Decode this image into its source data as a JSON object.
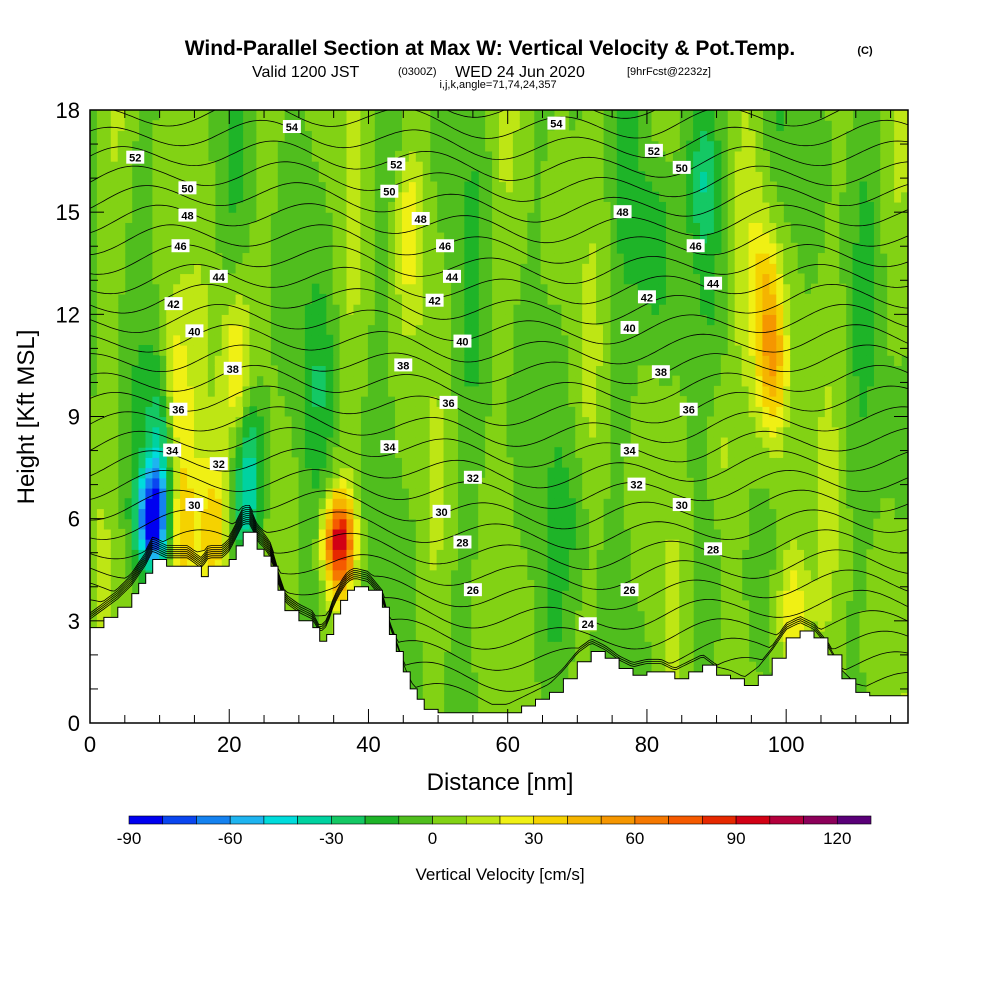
{
  "title": {
    "main": "Wind-Parallel Section at Max W: Vertical Velocity & Pot.Temp.",
    "copyright": "(C)",
    "valid_prefix": "Valid 1200 JST",
    "valid_utc": "(0300Z)",
    "valid_date": "WED 24 Jun 2020",
    "forecast": "[9hrFcst@2232z]",
    "indices": "i,j,k,angle=71,74,24,357"
  },
  "chart_data": {
    "type": "heatmap",
    "xlabel": "Distance [nm]",
    "ylabel": "Height [Kft MSL]",
    "xlim": [
      0,
      117.5
    ],
    "ylim": [
      0,
      18
    ],
    "x_ticks": [
      "0",
      "20",
      "40",
      "60",
      "80",
      "100"
    ],
    "y_ticks": [
      "0",
      "3",
      "6",
      "9",
      "12",
      "15",
      "18"
    ],
    "colorbar": {
      "label": "Vertical Velocity [cm/s]",
      "levels": [
        -90,
        -80,
        -70,
        -60,
        -50,
        -40,
        -30,
        -20,
        -10,
        0,
        10,
        20,
        30,
        40,
        50,
        60,
        70,
        80,
        90,
        100,
        110,
        120,
        130
      ],
      "tick_labels": [
        "-90",
        "-60",
        "-30",
        "0",
        "30",
        "60",
        "90",
        "120"
      ],
      "colors": [
        "#0000f0",
        "#0a46f0",
        "#1482f0",
        "#1eb4f0",
        "#00dcdc",
        "#00d2a0",
        "#14c864",
        "#1eb428",
        "#50be1e",
        "#82d214",
        "#bee614",
        "#f0f014",
        "#f5d200",
        "#f5b400",
        "#f59600",
        "#f57800",
        "#f55a00",
        "#e62800",
        "#d20014",
        "#b4003c",
        "#8c005a",
        "#5a0078"
      ]
    },
    "terrain_profile": {
      "x_nm": [
        0,
        2,
        4,
        6,
        7,
        8,
        9,
        11,
        12,
        14,
        16,
        17,
        19,
        20,
        21,
        22,
        23,
        24,
        25,
        26,
        27,
        28,
        30,
        32,
        33,
        34,
        35,
        36,
        37,
        38,
        40,
        42,
        43,
        44,
        45,
        46,
        47,
        48,
        50,
        52,
        56,
        60,
        62,
        64,
        66,
        68,
        70,
        72,
        74,
        76,
        78,
        80,
        82,
        84,
        86,
        88,
        90,
        92,
        94,
        96,
        98,
        100,
        102,
        104,
        106,
        108,
        110,
        112,
        114,
        116,
        117.5
      ],
      "height_kft": [
        2.8,
        3.1,
        3.4,
        3.8,
        4.1,
        4.4,
        4.8,
        4.6,
        4.6,
        4.6,
        4.3,
        4.6,
        4.6,
        4.8,
        5.2,
        5.6,
        5.6,
        5.1,
        4.9,
        4.6,
        3.9,
        3.3,
        3.0,
        2.8,
        2.4,
        2.6,
        3.2,
        3.6,
        3.9,
        4.0,
        3.9,
        3.4,
        2.6,
        2.1,
        1.5,
        1.0,
        0.7,
        0.4,
        0.3,
        0.3,
        0.3,
        0.3,
        0.5,
        0.7,
        0.9,
        1.3,
        1.8,
        2.1,
        1.9,
        1.6,
        1.4,
        1.5,
        1.5,
        1.3,
        1.5,
        1.7,
        1.4,
        1.3,
        1.1,
        1.4,
        1.9,
        2.5,
        2.7,
        2.5,
        2.0,
        1.3,
        0.9,
        0.8,
        0.8,
        0.8,
        0.8
      ]
    },
    "vertical_velocity_features": [
      {
        "x_nm": 9.0,
        "height_kft": 6.0,
        "value_cms": -90
      },
      {
        "x_nm": 10.5,
        "height_kft": 8.5,
        "value_cms": -40
      },
      {
        "x_nm": 22.5,
        "height_kft": 6.6,
        "value_cms": -40
      },
      {
        "x_nm": 23.0,
        "height_kft": 8.8,
        "value_cms": -20
      },
      {
        "x_nm": 12.0,
        "height_kft": 9.5,
        "value_cms": 40
      },
      {
        "x_nm": 21.0,
        "height_kft": 10.3,
        "value_cms": 40
      },
      {
        "x_nm": 18.0,
        "height_kft": 5.6,
        "value_cms": 45
      },
      {
        "x_nm": 13.0,
        "height_kft": 5.6,
        "value_cms": 40
      },
      {
        "x_nm": 35.8,
        "height_kft": 5.3,
        "value_cms": 95
      },
      {
        "x_nm": 46.0,
        "height_kft": 14.5,
        "value_cms": 25
      },
      {
        "x_nm": 98.0,
        "height_kft": 10.6,
        "value_cms": 45
      },
      {
        "x_nm": 97.0,
        "height_kft": 13.0,
        "value_cms": 25
      },
      {
        "x_nm": 101.0,
        "height_kft": 3.0,
        "value_cms": 40
      },
      {
        "x_nm": 88.0,
        "height_kft": 16.0,
        "value_cms": -30
      },
      {
        "x_nm": 81.0,
        "height_kft": 14.0,
        "value_cms": -20
      },
      {
        "x_nm": 90.0,
        "height_kft": 8.0,
        "value_cms": 20
      },
      {
        "x_nm": 70.0,
        "height_kft": 6.0,
        "value_cms": -10
      },
      {
        "x_nm": 33.0,
        "height_kft": 10.0,
        "value_cms": -10
      }
    ],
    "isentrope_labels": [
      {
        "value": "54",
        "x_nm": 29.0,
        "height_kft": 17.5
      },
      {
        "value": "54",
        "x_nm": 67.0,
        "height_kft": 17.6
      },
      {
        "value": "52",
        "x_nm": 6.5,
        "height_kft": 16.6
      },
      {
        "value": "52",
        "x_nm": 44.0,
        "height_kft": 16.4
      },
      {
        "value": "52",
        "x_nm": 81.0,
        "height_kft": 16.8
      },
      {
        "value": "50",
        "x_nm": 14.0,
        "height_kft": 15.7
      },
      {
        "value": "50",
        "x_nm": 43.0,
        "height_kft": 15.6
      },
      {
        "value": "50",
        "x_nm": 85.0,
        "height_kft": 16.3
      },
      {
        "value": "48",
        "x_nm": 14.0,
        "height_kft": 14.9
      },
      {
        "value": "48",
        "x_nm": 47.5,
        "height_kft": 14.8
      },
      {
        "value": "48",
        "x_nm": 76.5,
        "height_kft": 15.0
      },
      {
        "value": "46",
        "x_nm": 13.0,
        "height_kft": 14.0
      },
      {
        "value": "46",
        "x_nm": 51.0,
        "height_kft": 14.0
      },
      {
        "value": "46",
        "x_nm": 87.0,
        "height_kft": 14.0
      },
      {
        "value": "44",
        "x_nm": 18.5,
        "height_kft": 13.1
      },
      {
        "value": "44",
        "x_nm": 52.0,
        "height_kft": 13.1
      },
      {
        "value": "44",
        "x_nm": 89.5,
        "height_kft": 12.9
      },
      {
        "value": "42",
        "x_nm": 12.0,
        "height_kft": 12.3
      },
      {
        "value": "42",
        "x_nm": 49.5,
        "height_kft": 12.4
      },
      {
        "value": "42",
        "x_nm": 80.0,
        "height_kft": 12.5
      },
      {
        "value": "40",
        "x_nm": 15.0,
        "height_kft": 11.5
      },
      {
        "value": "40",
        "x_nm": 53.5,
        "height_kft": 11.2
      },
      {
        "value": "40",
        "x_nm": 77.5,
        "height_kft": 11.6
      },
      {
        "value": "38",
        "x_nm": 20.5,
        "height_kft": 10.4
      },
      {
        "value": "38",
        "x_nm": 45.0,
        "height_kft": 10.5
      },
      {
        "value": "38",
        "x_nm": 82.0,
        "height_kft": 10.3
      },
      {
        "value": "36",
        "x_nm": 12.7,
        "height_kft": 9.2
      },
      {
        "value": "36",
        "x_nm": 51.5,
        "height_kft": 9.4
      },
      {
        "value": "36",
        "x_nm": 86.0,
        "height_kft": 9.2
      },
      {
        "value": "34",
        "x_nm": 11.8,
        "height_kft": 8.0
      },
      {
        "value": "34",
        "x_nm": 43.0,
        "height_kft": 8.1
      },
      {
        "value": "34",
        "x_nm": 77.5,
        "height_kft": 8.0
      },
      {
        "value": "32",
        "x_nm": 18.5,
        "height_kft": 7.6
      },
      {
        "value": "32",
        "x_nm": 55.0,
        "height_kft": 7.2
      },
      {
        "value": "32",
        "x_nm": 78.5,
        "height_kft": 7.0
      },
      {
        "value": "30",
        "x_nm": 15.0,
        "height_kft": 6.4
      },
      {
        "value": "30",
        "x_nm": 50.5,
        "height_kft": 6.2
      },
      {
        "value": "30",
        "x_nm": 85.0,
        "height_kft": 6.4
      },
      {
        "value": "28",
        "x_nm": 53.5,
        "height_kft": 5.3
      },
      {
        "value": "28",
        "x_nm": 89.5,
        "height_kft": 5.1
      },
      {
        "value": "26",
        "x_nm": 55.0,
        "height_kft": 3.9
      },
      {
        "value": "26",
        "x_nm": 77.5,
        "height_kft": 3.9
      },
      {
        "value": "24",
        "x_nm": 71.5,
        "height_kft": 2.9
      }
    ]
  }
}
